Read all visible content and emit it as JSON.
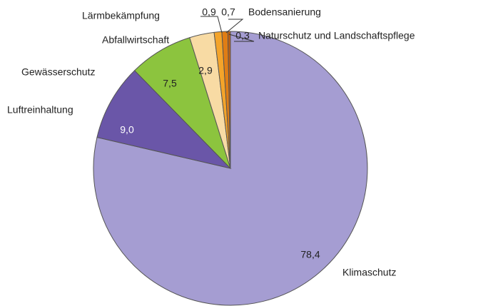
{
  "chart_data": {
    "type": "pie",
    "categories": [
      "Klimaschutz",
      "Luftreinhaltung",
      "Gewässerschutz",
      "Abfallwirtschaft",
      "Lärmbekämpfung",
      "Bodensanierung",
      "Naturschutz und Landschaftspflege"
    ],
    "values": [
      78.4,
      9.0,
      7.5,
      2.9,
      0.9,
      0.7,
      0.3
    ],
    "value_labels": [
      "78,4",
      "9,0",
      "7,5",
      "2,9",
      "0,9",
      "0,7",
      "0,3"
    ],
    "colors": [
      "#a59dd2",
      "#6a56a8",
      "#8cc43e",
      "#f8dba4",
      "#f4a42a",
      "#e07d14",
      "#c7620e"
    ]
  }
}
